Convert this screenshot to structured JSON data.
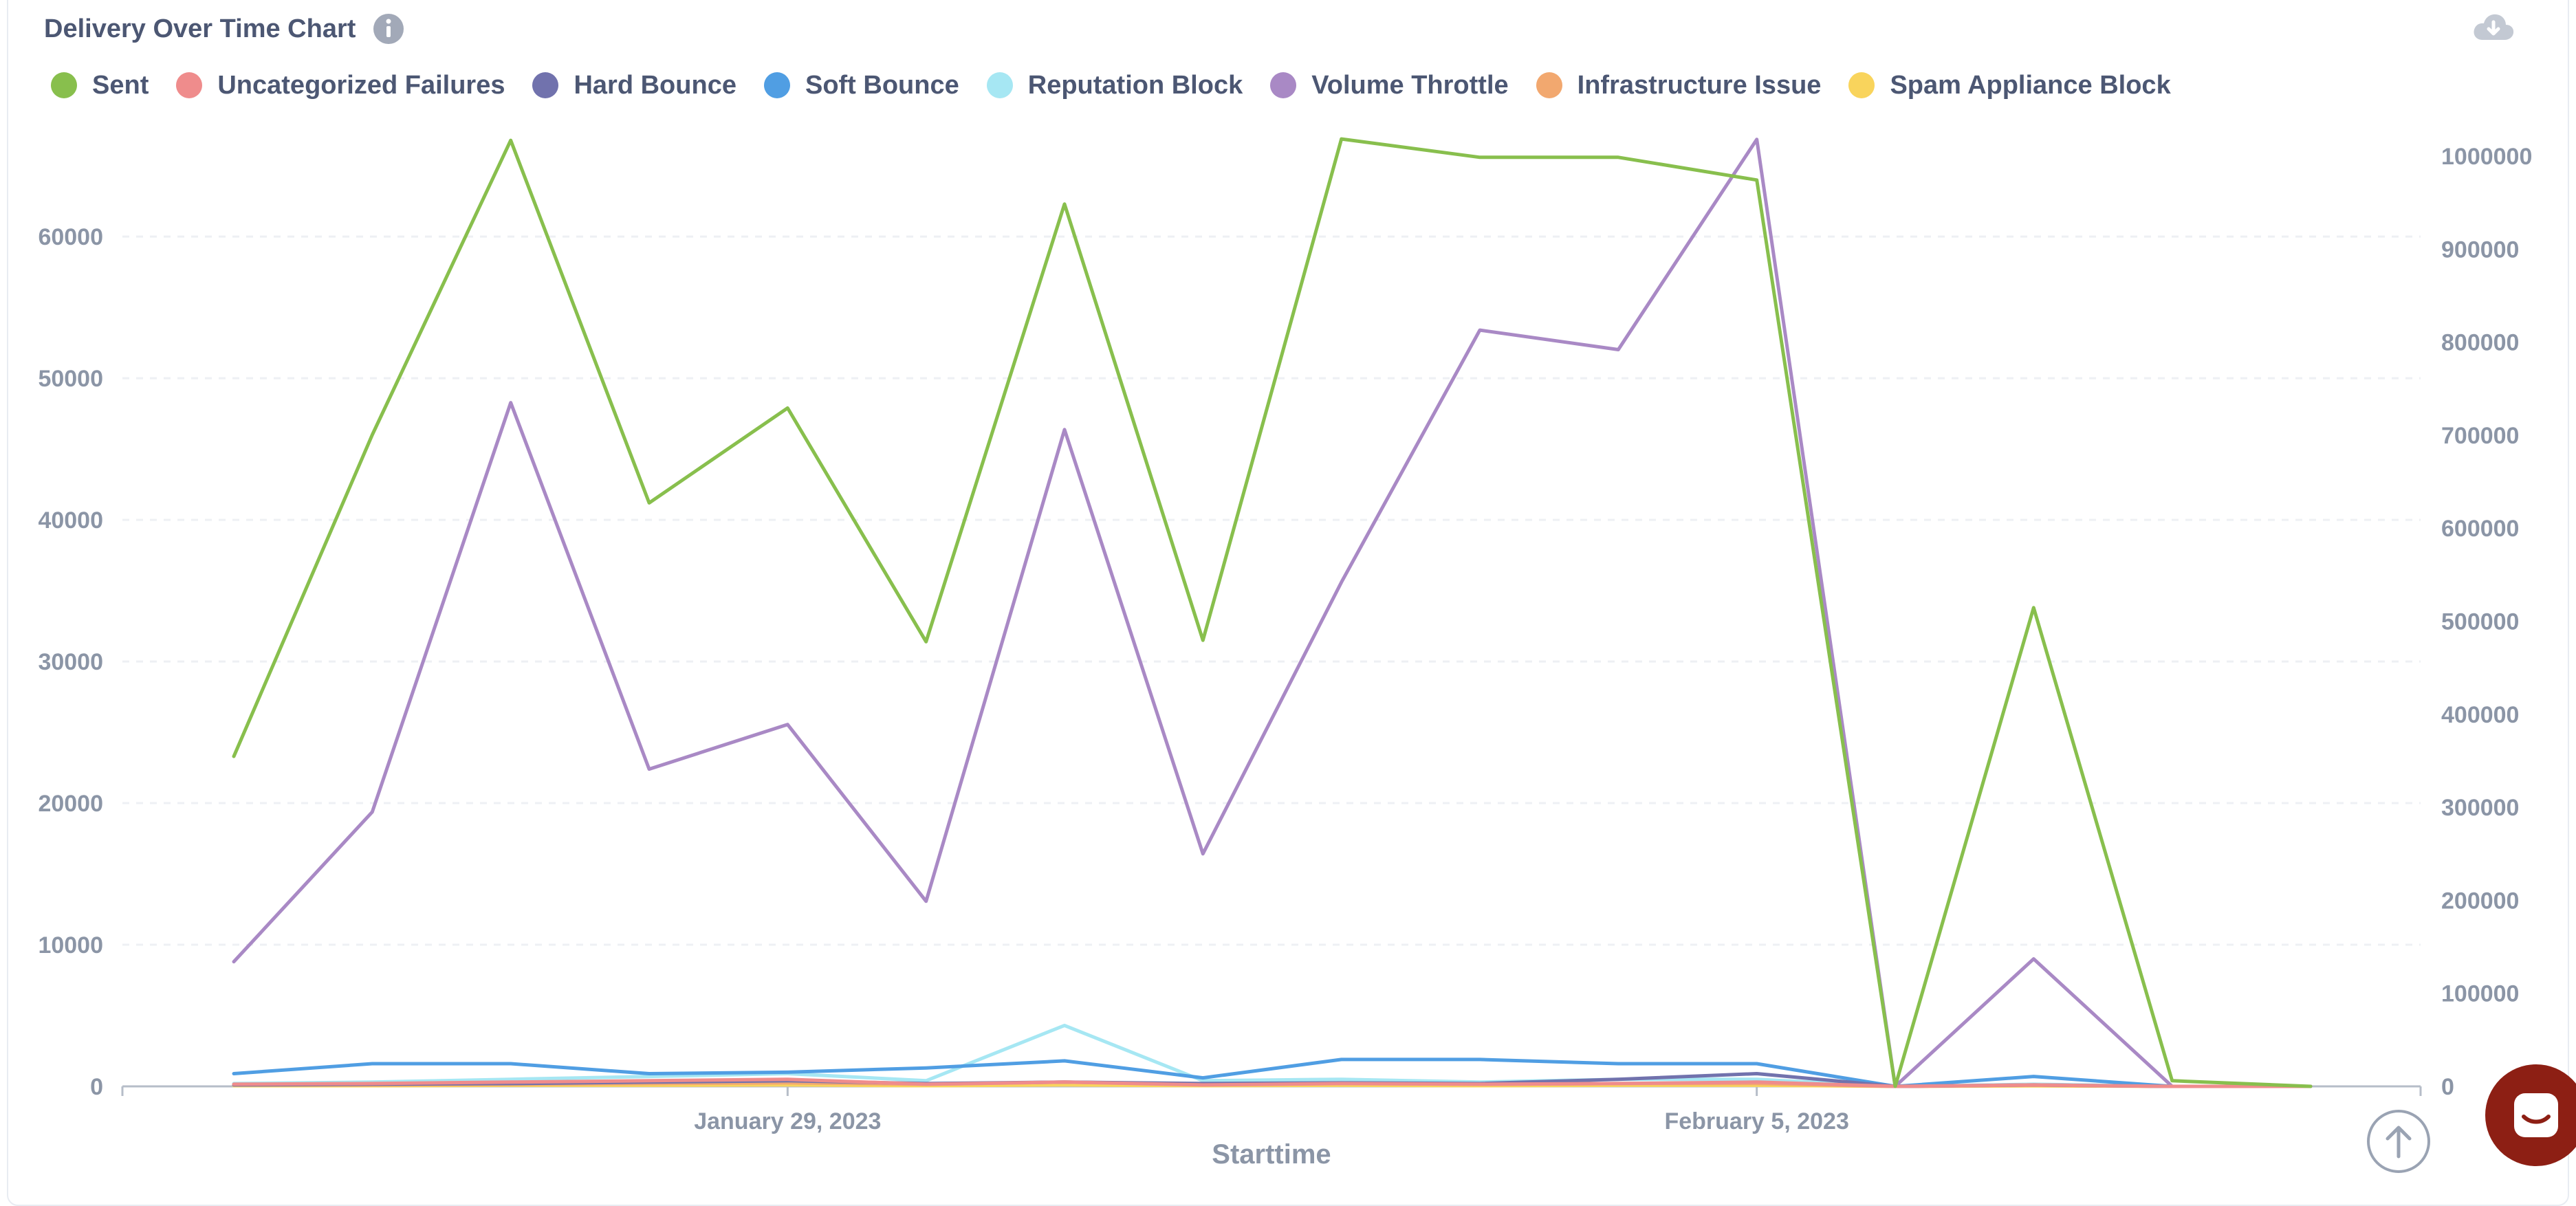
{
  "chart_header": {
    "title": "Delivery Over Time Chart",
    "info_icon": "info-icon",
    "download_icon": "cloud-download-icon"
  },
  "support_icon": "chat-support-icon",
  "scroll_top_icon": "arrow-up-icon",
  "chart_data": {
    "type": "line",
    "title": "Delivery Over Time Chart",
    "xlabel": "Starttime",
    "ylabel": "",
    "x_tick_labels": [
      {
        "date": "2023-01-29",
        "label": "January 29, 2023"
      },
      {
        "date": "2023-02-05",
        "label": "February 5, 2023"
      }
    ],
    "x": [
      "2023-01-25",
      "2023-01-26",
      "2023-01-27",
      "2023-01-28",
      "2023-01-29",
      "2023-01-30",
      "2023-01-31",
      "2023-02-01",
      "2023-02-02",
      "2023-02-03",
      "2023-02-04",
      "2023-02-05",
      "2023-02-06",
      "2023-02-07",
      "2023-02-08",
      "2023-02-09"
    ],
    "y_left": {
      "ylim": [
        0,
        67000
      ],
      "ticks": [
        0,
        10000,
        20000,
        30000,
        40000,
        50000,
        60000
      ]
    },
    "y_right": {
      "ylim": [
        0,
        1020000
      ],
      "ticks": [
        0,
        100000,
        200000,
        300000,
        400000,
        500000,
        600000,
        700000,
        800000,
        900000,
        1000000
      ]
    },
    "grid": true,
    "legend_position": "top-left",
    "series": [
      {
        "name": "Sent",
        "color": "#88bf4d",
        "axis": "left",
        "values": [
          23300,
          46000,
          66800,
          41200,
          47900,
          31400,
          62300,
          31500,
          66900,
          65600,
          65600,
          64000,
          0,
          33800,
          400,
          0
        ]
      },
      {
        "name": "Uncategorized Failures",
        "color": "#ef8c8c",
        "axis": "left",
        "values": [
          150,
          200,
          300,
          400,
          500,
          150,
          300,
          100,
          200,
          150,
          200,
          300,
          0,
          100,
          0,
          0
        ]
      },
      {
        "name": "Hard Bounce",
        "color": "#7172ad",
        "axis": "left",
        "values": [
          100,
          150,
          200,
          300,
          400,
          200,
          300,
          200,
          250,
          200,
          500,
          900,
          0,
          100,
          0,
          0
        ]
      },
      {
        "name": "Soft Bounce",
        "color": "#509ee3",
        "axis": "left",
        "values": [
          900,
          1600,
          1600,
          900,
          1000,
          1300,
          1800,
          600,
          1900,
          1900,
          1600,
          1600,
          0,
          700,
          0,
          0
        ]
      },
      {
        "name": "Reputation Block",
        "color": "#a6e7f3",
        "axis": "left",
        "values": [
          200,
          300,
          500,
          700,
          900,
          400,
          4300,
          400,
          500,
          300,
          500,
          500,
          0,
          150,
          0,
          0
        ]
      },
      {
        "name": "Volume Throttle",
        "color": "#a989c5",
        "axis": "right",
        "values": [
          134000,
          295000,
          735000,
          341000,
          389000,
          199000,
          706000,
          250000,
          542000,
          813000,
          792000,
          1018000,
          0,
          137000,
          0,
          0
        ]
      },
      {
        "name": "Infrastructure Issue",
        "color": "#f2a86f",
        "axis": "left",
        "values": [
          100,
          100,
          150,
          200,
          250,
          150,
          300,
          150,
          200,
          150,
          200,
          200,
          0,
          80,
          0,
          0
        ]
      },
      {
        "name": "Spam Appliance Block",
        "color": "#f9d45c",
        "axis": "left",
        "values": [
          50,
          50,
          80,
          80,
          100,
          50,
          100,
          50,
          80,
          50,
          80,
          80,
          0,
          40,
          0,
          0
        ]
      }
    ]
  }
}
